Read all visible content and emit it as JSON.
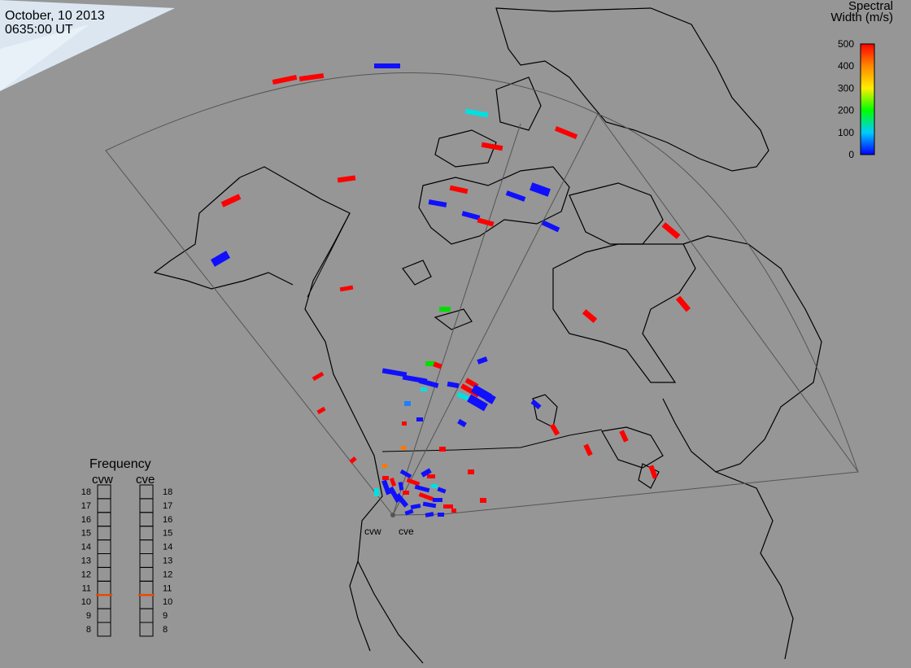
{
  "header": {
    "date": "October, 10 2013",
    "time": "0635:00 UT"
  },
  "colorbar": {
    "title_line1": "Spectral",
    "title_line2": "Width (m/s)",
    "ticks": [
      "500",
      "400",
      "300",
      "200",
      "100",
      "0"
    ],
    "min": 0,
    "max": 500
  },
  "frequency_panel": {
    "title": "Frequency",
    "radars": [
      {
        "name": "cvw",
        "value_mhz": 10.5
      },
      {
        "name": "cve",
        "value_mhz": 10.5
      }
    ],
    "scale": [
      "18",
      "17",
      "16",
      "15",
      "14",
      "13",
      "12",
      "11",
      "10",
      "9",
      "8"
    ]
  },
  "radar_sites": [
    {
      "label": "cvw"
    },
    {
      "label": "cve"
    }
  ],
  "colors": {
    "background": "#969696",
    "land_outline": "#000000",
    "fov_outline": "#4a4a4a",
    "marker": "#e84a00"
  }
}
